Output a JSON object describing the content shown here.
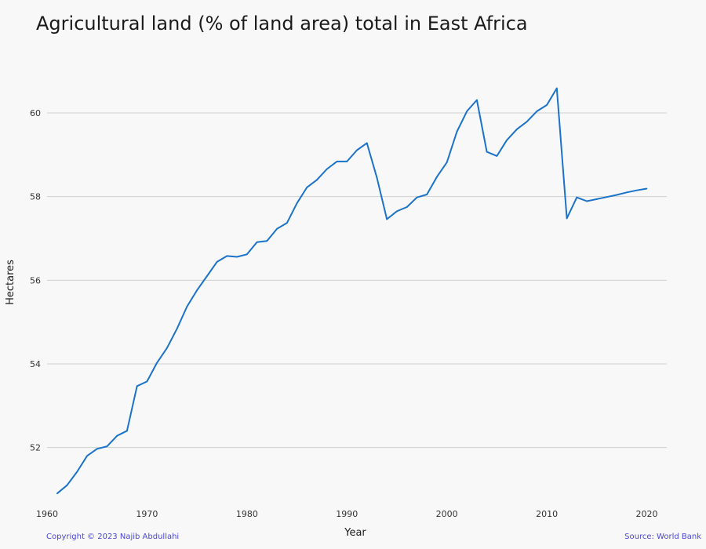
{
  "chart_data": {
    "type": "line",
    "title": "Agricultural land (% of land area) total in East Africa",
    "xlabel": "Year",
    "ylabel": "Hectares",
    "xlim": [
      1960,
      2022
    ],
    "ylim": [
      50.7,
      61.2
    ],
    "xticks": [
      1960,
      1970,
      1980,
      1990,
      2000,
      2010,
      2020
    ],
    "yticks": [
      52,
      54,
      56,
      58,
      60
    ],
    "grid": "horizontal",
    "color": "#1a73c9",
    "x": [
      1961,
      1962,
      1963,
      1964,
      1965,
      1966,
      1967,
      1968,
      1969,
      1970,
      1971,
      1972,
      1973,
      1974,
      1975,
      1976,
      1977,
      1978,
      1979,
      1980,
      1981,
      1982,
      1983,
      1984,
      1985,
      1986,
      1987,
      1988,
      1989,
      1990,
      1991,
      1992,
      1993,
      1994,
      1995,
      1996,
      1997,
      1998,
      1999,
      2000,
      2001,
      2002,
      2003,
      2004,
      2005,
      2006,
      2007,
      2008,
      2009,
      2010,
      2011,
      2012,
      2013,
      2014,
      2015,
      2016,
      2017,
      2018,
      2019,
      2020
    ],
    "y": [
      50.9,
      51.1,
      51.42,
      51.8,
      51.97,
      52.03,
      52.28,
      52.4,
      53.47,
      53.58,
      54.03,
      54.38,
      54.84,
      55.37,
      55.76,
      56.1,
      56.44,
      56.58,
      56.56,
      56.62,
      56.91,
      56.94,
      57.23,
      57.37,
      57.84,
      58.22,
      58.4,
      58.66,
      58.84,
      58.84,
      59.11,
      59.28,
      58.45,
      57.46,
      57.65,
      57.75,
      57.98,
      58.05,
      58.47,
      58.82,
      59.55,
      60.04,
      60.31,
      59.07,
      58.97,
      59.35,
      59.61,
      59.79,
      60.04,
      60.19,
      60.59,
      57.48,
      57.98,
      57.89,
      57.94,
      57.99,
      58.04,
      58.1,
      58.15,
      58.19
    ]
  },
  "footer": {
    "copyright": "Copyright © 2023 Najib Abdullahi",
    "source": "Source: World Bank"
  }
}
